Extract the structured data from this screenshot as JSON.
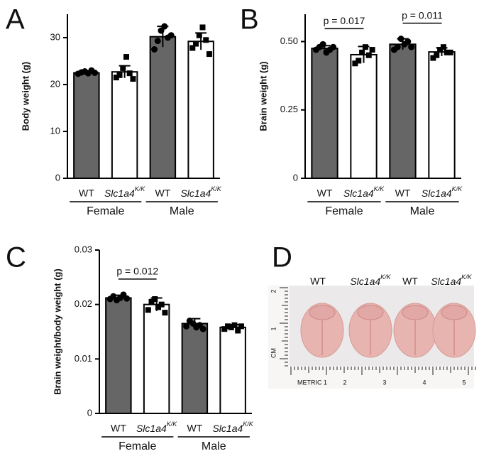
{
  "chart_data": [
    {
      "type": "bar",
      "panel": "A",
      "y_label": "Body weight (g)",
      "categories": [
        "WT",
        {
          "name": "Slc1a4",
          "sup": "K/K"
        },
        "WT",
        {
          "name": "Slc1a4",
          "sup": "K/K"
        }
      ],
      "groups": [
        {
          "label": "Female",
          "span": [
            0,
            1
          ]
        },
        {
          "label": "Male",
          "span": [
            2,
            3
          ]
        }
      ],
      "values": [
        22.5,
        22.7,
        30.2,
        29.2
      ],
      "errors": [
        0.4,
        1.3,
        2.2,
        1.8
      ],
      "points": [
        [
          22.3,
          22.6,
          22.8,
          22.4,
          23.0,
          22.5
        ],
        [
          21.5,
          22.0,
          23.5,
          25.9,
          22.4,
          21.2
        ],
        [
          27.5,
          29.3,
          31.5,
          32.4,
          30.0,
          30.5
        ],
        [
          27.8,
          28.7,
          30.5,
          32.2,
          29.5,
          26.5
        ]
      ],
      "colors": [
        "#666666",
        "#ffffff",
        "#666666",
        "#ffffff"
      ],
      "ylim": [
        0,
        35
      ],
      "yticks": [
        0,
        10,
        20,
        30
      ],
      "annotations": []
    },
    {
      "type": "bar",
      "panel": "B",
      "y_label": "Brain weight (g)",
      "categories": [
        "WT",
        {
          "name": "Slc1a4",
          "sup": "K/K"
        },
        "WT",
        {
          "name": "Slc1a4",
          "sup": "K/K"
        }
      ],
      "groups": [
        {
          "label": "Female",
          "span": [
            0,
            1
          ]
        },
        {
          "label": "Male",
          "span": [
            2,
            3
          ]
        }
      ],
      "values": [
        0.475,
        0.452,
        0.49,
        0.462
      ],
      "errors": [
        0.01,
        0.03,
        0.02,
        0.015
      ],
      "points": [
        [
          0.47,
          0.48,
          0.49,
          0.46,
          0.47,
          0.48
        ],
        [
          0.42,
          0.43,
          0.46,
          0.48,
          0.45,
          0.47
        ],
        [
          0.47,
          0.48,
          0.51,
          0.49,
          0.5,
          0.48
        ],
        [
          0.44,
          0.45,
          0.47,
          0.48,
          0.46,
          0.46
        ]
      ],
      "colors": [
        "#666666",
        "#ffffff",
        "#666666",
        "#ffffff"
      ],
      "ylim": [
        0,
        0.6
      ],
      "yticks": [
        0,
        0.25,
        {
          "value": 0.5,
          "label": "0.50"
        }
      ],
      "annotations": [
        {
          "text": "p = 0.017",
          "from": 0,
          "to": 1
        },
        {
          "text": "p = 0.011",
          "from": 2,
          "to": 3
        }
      ]
    },
    {
      "type": "bar",
      "panel": "C",
      "y_label": "Brain weight/body weight (g)",
      "categories": [
        "WT",
        {
          "name": "Slc1a4",
          "sup": "K/K"
        },
        "WT",
        {
          "name": "Slc1a4",
          "sup": "K/K"
        }
      ],
      "groups": [
        {
          "label": "Female",
          "span": [
            0,
            1
          ]
        },
        {
          "label": "Male",
          "span": [
            2,
            3
          ]
        }
      ],
      "values": [
        0.0212,
        0.02,
        0.0165,
        0.0158
      ],
      "errors": [
        0.0005,
        0.0012,
        0.0009,
        0.0005
      ],
      "points": [
        [
          0.021,
          0.0215,
          0.0208,
          0.0212,
          0.0218,
          0.0211
        ],
        [
          0.019,
          0.0205,
          0.021,
          0.0195,
          0.02,
          0.0185
        ],
        [
          0.016,
          0.017,
          0.0165,
          0.0158,
          0.0162,
          0.0155
        ],
        [
          0.0155,
          0.016,
          0.0158,
          0.0162,
          0.0152,
          0.016
        ]
      ],
      "colors": [
        "#666666",
        "#ffffff",
        "#666666",
        "#ffffff"
      ],
      "ylim": [
        0,
        0.03
      ],
      "yticks": [
        0,
        0.01,
        0.02,
        0.03
      ],
      "annotations": [
        {
          "text": "p = 0.012",
          "from": 0,
          "to": 1
        }
      ]
    }
  ],
  "photo": {
    "panel": "D",
    "labels": [
      "WT",
      {
        "name": "Slc1a4",
        "sup": "K/K"
      },
      "WT",
      {
        "name": "Slc1a4",
        "sup": "K/K"
      }
    ],
    "ruler": [
      "METRIC 1",
      "2",
      "3",
      "4",
      "5"
    ],
    "side_ruler": [
      "2",
      "1",
      "CM"
    ]
  }
}
